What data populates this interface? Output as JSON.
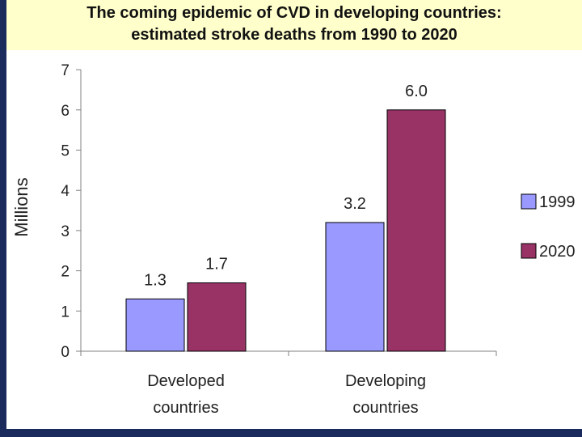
{
  "chart_data": {
    "type": "bar",
    "title": "The coming epidemic of CVD in developing countries:",
    "subtitle": "estimated stroke deaths from 1990 to 2020",
    "xlabel": "",
    "ylabel": "Millions",
    "ylim": [
      0,
      7
    ],
    "yticks": [
      "0",
      "1",
      "2",
      "3",
      "4",
      "5",
      "6",
      "7"
    ],
    "categories": [
      [
        "Developed",
        "countries"
      ],
      [
        "Developing",
        "countries"
      ]
    ],
    "series": [
      {
        "name": "1999",
        "color": "#9999ff",
        "values": [
          1.3,
          3.2
        ],
        "labels": [
          "1.3",
          "3.2"
        ]
      },
      {
        "name": "2020",
        "color": "#993366",
        "values": [
          1.7,
          6.0
        ],
        "labels": [
          "1.7",
          "6.0"
        ]
      }
    ],
    "legend_position": "right"
  }
}
